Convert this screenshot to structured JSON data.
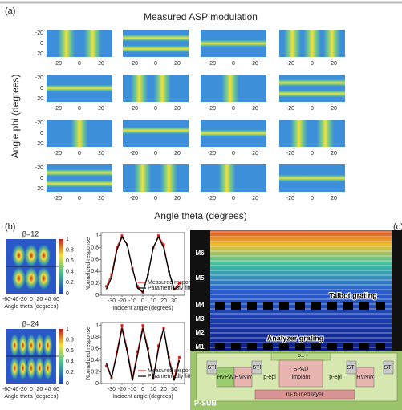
{
  "panel_a": {
    "label": "(a)",
    "title": "Measured ASP modulation",
    "y_label": "Angle phi (degrees)",
    "x_label": "Angle theta (degrees)",
    "ticks": [
      "-20",
      "0",
      "20"
    ]
  },
  "panel_b": {
    "label": "(b)",
    "heatmaps": [
      {
        "title": "β=12"
      },
      {
        "title": "β=24"
      }
    ],
    "heatmap_xticks": [
      "-60",
      "-40",
      "-20",
      "0",
      "20",
      "40",
      "60"
    ],
    "heatmap_x_label": "Angle theta (degrees)",
    "colorbar_ticks": [
      "1",
      "0.8",
      "0.6",
      "0.4",
      "0.2",
      "0"
    ]
  },
  "chart_data": [
    {
      "type": "line",
      "x": [
        -35,
        -30,
        -25,
        -20,
        -15,
        -10,
        -5,
        0,
        5,
        10,
        15,
        20,
        25,
        30,
        35
      ],
      "xlim": [
        -40,
        40
      ],
      "xticks": [
        -30,
        -20,
        -10,
        0,
        10,
        20,
        30
      ],
      "ylim": [
        0,
        1.05
      ],
      "yticks": [
        0,
        0.2,
        0.4,
        0.6,
        0.8,
        1
      ],
      "x_label": "Incident angle (degrees)",
      "y_label": "Normalized response",
      "series": [
        {
          "name": "Measured response",
          "color": "#e02020",
          "values": [
            0.15,
            0.35,
            0.8,
            1.0,
            0.85,
            0.45,
            0.15,
            0.05,
            0.35,
            0.8,
            1.0,
            0.85,
            0.4,
            0.1,
            0.2
          ]
        },
        {
          "name": "Parametrically fitted",
          "color": "#000000",
          "values": [
            0.1,
            0.3,
            0.75,
            0.98,
            0.85,
            0.45,
            0.12,
            0.05,
            0.35,
            0.8,
            0.98,
            0.8,
            0.4,
            0.1,
            0.15
          ]
        }
      ]
    },
    {
      "type": "line",
      "x": [
        -35,
        -30,
        -25,
        -20,
        -15,
        -10,
        -5,
        0,
        5,
        10,
        15,
        20,
        25,
        30,
        35
      ],
      "xlim": [
        -40,
        40
      ],
      "xticks": [
        -30,
        -20,
        -10,
        0,
        10,
        20,
        30
      ],
      "ylim": [
        0,
        1.05
      ],
      "yticks": [
        0,
        0.2,
        0.4,
        0.6,
        0.8,
        1
      ],
      "x_label": "Incident angle (degrees)",
      "y_label": "Normalized response",
      "series": [
        {
          "name": "Measured response",
          "color": "#e02020",
          "values": [
            0.3,
            0.1,
            0.55,
            1.0,
            0.6,
            0.1,
            0.55,
            1.0,
            0.6,
            0.1,
            0.65,
            0.95,
            0.45,
            0.1,
            0.45
          ]
        },
        {
          "name": "Parametrically fitted",
          "color": "#000000",
          "values": [
            0.35,
            0.1,
            0.5,
            0.95,
            0.55,
            0.05,
            0.5,
            0.95,
            0.55,
            0.08,
            0.6,
            0.95,
            0.4,
            0.05,
            0.4
          ]
        }
      ]
    }
  ],
  "panel_c": {
    "label": "(c)",
    "metal_layers": [
      "M6",
      "M5",
      "M4",
      "M3",
      "M2",
      "M1"
    ],
    "talbot": "Talbot grating",
    "analyzer": "Analyzer grating",
    "sti": "STI",
    "hvpw": "HVPW",
    "hvnw": "HVNW",
    "p_epi": "p-epi",
    "spad": [
      "SPAD",
      "implant"
    ],
    "p_plus": "P+",
    "n_buried": "n+ buried layer",
    "p_sub": "P-SUB"
  }
}
